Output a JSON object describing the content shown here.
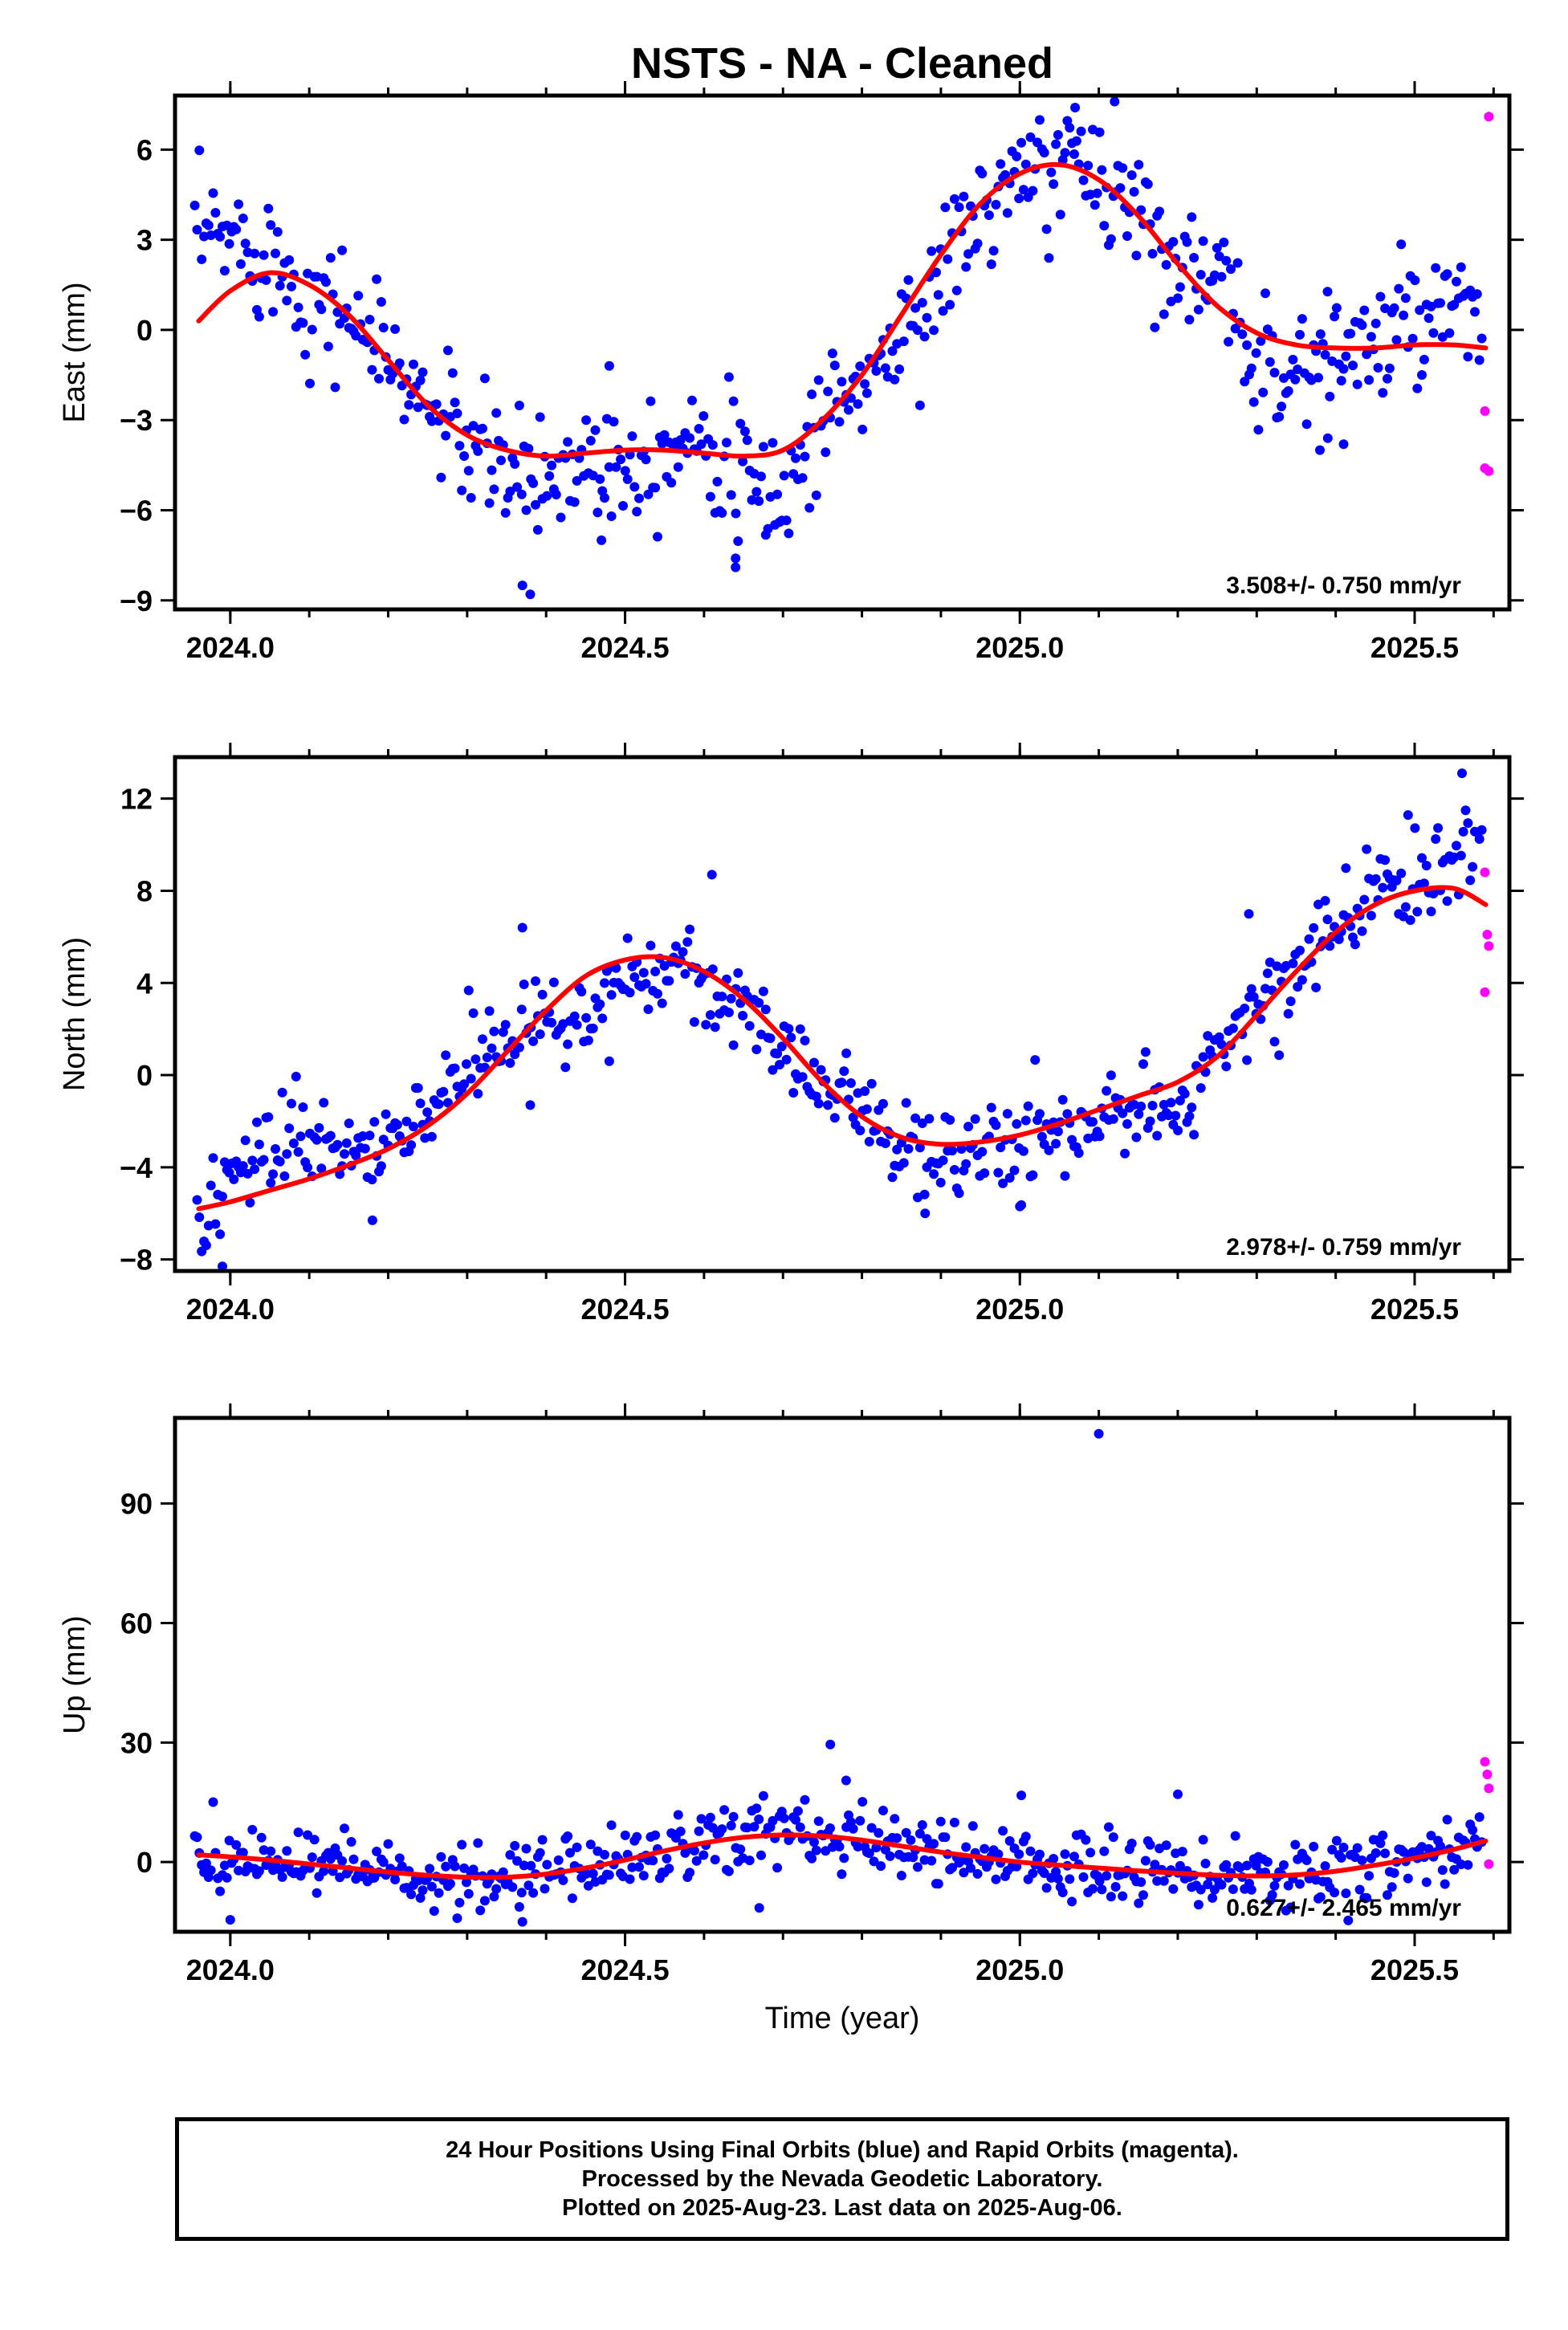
{
  "title": "NSTS  - NA - Cleaned",
  "xlabel": "Time (year)",
  "colors": {
    "final": "#0000ff",
    "rapid": "#ff00ff",
    "fit": "#ff0000",
    "axis": "#000000"
  },
  "caption": [
    "24 Hour Positions Using Final Orbits (blue) and Rapid Orbits (magenta).",
    "Processed by the Nevada Geodetic Laboratory.",
    "Plotted on 2025-Aug-23. Last data on 2025-Aug-06."
  ],
  "chart_data": [
    {
      "type": "scatter",
      "ylabel": "East (mm)",
      "rate_label": "3.508+/- 0.750 mm/yr",
      "xlim": [
        2023.93,
        2025.62
      ],
      "ylim": [
        -9.3,
        7.8
      ],
      "xticks": [
        2024.0,
        2024.5,
        2025.0,
        2025.5
      ],
      "xtick_labels": [
        "2024.0",
        "2024.5",
        "2025.0",
        "2025.5"
      ],
      "yticks": [
        -9,
        -6,
        -3,
        0,
        3,
        6
      ],
      "ytick_labels": [
        "−9",
        "−6",
        "−3",
        "0",
        "3",
        "6"
      ],
      "grid": false,
      "fit_curve": {
        "x": [
          2023.96,
          2024.0,
          2024.05,
          2024.1,
          2024.15,
          2024.2,
          2024.25,
          2024.3,
          2024.35,
          2024.4,
          2024.45,
          2024.5,
          2024.55,
          2024.6,
          2024.65,
          2024.7,
          2024.75,
          2024.8,
          2024.85,
          2024.9,
          2024.95,
          2025.0,
          2025.05,
          2025.1,
          2025.15,
          2025.2,
          2025.25,
          2025.3,
          2025.35,
          2025.4,
          2025.45,
          2025.5,
          2025.55,
          2025.59
        ],
        "y": [
          0.3,
          1.3,
          1.9,
          1.5,
          0.5,
          -1.0,
          -2.5,
          -3.5,
          -4.0,
          -4.2,
          -4.1,
          -4.0,
          -4.0,
          -4.1,
          -4.2,
          -4.0,
          -3.0,
          -1.5,
          0.5,
          2.5,
          4.2,
          5.2,
          5.5,
          5.0,
          3.8,
          2.2,
          0.8,
          -0.1,
          -0.5,
          -0.6,
          -0.6,
          -0.5,
          -0.5,
          -0.6
        ]
      },
      "anchors": {
        "x": [
          2023.96,
          2024.0,
          2024.05,
          2024.1,
          2024.15,
          2024.2,
          2024.25,
          2024.3,
          2024.35,
          2024.4,
          2024.45,
          2024.5,
          2024.55,
          2024.6,
          2024.65,
          2024.7,
          2024.75,
          2024.8,
          2024.85,
          2024.9,
          2024.95,
          2025.0,
          2025.05,
          2025.1,
          2025.15,
          2025.2,
          2025.25,
          2025.3,
          2025.35,
          2025.4,
          2025.45,
          2025.5,
          2025.55,
          2025.59
        ],
        "y": [
          3.0,
          3.1,
          2.6,
          1.0,
          0.6,
          -1.0,
          -2.5,
          -3.8,
          -4.8,
          -5.0,
          -4.2,
          -4.3,
          -3.9,
          -3.2,
          -5.2,
          -5.6,
          -2.8,
          -1.8,
          -0.2,
          1.8,
          4.0,
          4.8,
          5.6,
          5.2,
          4.0,
          2.4,
          1.3,
          -0.8,
          -1.5,
          -0.5,
          -0.6,
          0.3,
          0.2,
          0.6
        ]
      },
      "noise": 1.05,
      "count": 560,
      "outliers": [
        [
          2024.37,
          -8.5
        ],
        [
          2024.38,
          -8.8
        ],
        [
          2024.47,
          -7.0
        ],
        [
          2024.64,
          -7.9
        ],
        [
          2024.64,
          -7.6
        ],
        [
          2024.48,
          -1.2
        ],
        [
          2025.07,
          7.4
        ],
        [
          2025.12,
          7.6
        ],
        [
          2025.38,
          -4.0
        ],
        [
          2025.39,
          -3.6
        ],
        [
          2025.41,
          -3.8
        ]
      ],
      "rapid": [
        [
          2025.594,
          7.1
        ],
        [
          2025.589,
          -2.7
        ],
        [
          2025.589,
          -4.6
        ],
        [
          2025.594,
          -4.7
        ]
      ]
    },
    {
      "type": "scatter",
      "ylabel": "North (mm)",
      "rate_label": "2.978+/- 0.759 mm/yr",
      "xlim": [
        2023.93,
        2025.62
      ],
      "ylim": [
        -8.5,
        13.8
      ],
      "xticks": [
        2024.0,
        2024.5,
        2025.0,
        2025.5
      ],
      "xtick_labels": [
        "2024.0",
        "2024.5",
        "2025.0",
        "2025.5"
      ],
      "yticks": [
        -8,
        -4,
        0,
        4,
        8,
        12
      ],
      "ytick_labels": [
        "−8",
        "−4",
        "0",
        "4",
        "8",
        "12"
      ],
      "grid": false,
      "fit_curve": {
        "x": [
          2023.96,
          2024.0,
          2024.05,
          2024.1,
          2024.15,
          2024.2,
          2024.25,
          2024.3,
          2024.35,
          2024.4,
          2024.45,
          2024.5,
          2024.55,
          2024.6,
          2024.65,
          2024.7,
          2024.75,
          2024.8,
          2024.85,
          2024.9,
          2024.95,
          2025.0,
          2025.05,
          2025.1,
          2025.15,
          2025.2,
          2025.25,
          2025.3,
          2025.35,
          2025.4,
          2025.45,
          2025.5,
          2025.55,
          2025.59
        ],
        "y": [
          -5.8,
          -5.5,
          -5.0,
          -4.5,
          -3.9,
          -3.2,
          -2.2,
          -0.8,
          1.0,
          2.8,
          4.3,
          5.0,
          5.1,
          4.5,
          3.3,
          1.6,
          -0.3,
          -1.8,
          -2.7,
          -3.0,
          -2.9,
          -2.6,
          -2.1,
          -1.5,
          -0.9,
          -0.3,
          0.8,
          2.6,
          4.5,
          6.2,
          7.4,
          8.0,
          8.1,
          7.4
        ]
      },
      "anchors": {
        "x": [
          2023.96,
          2024.0,
          2024.05,
          2024.1,
          2024.15,
          2024.2,
          2024.25,
          2024.3,
          2024.35,
          2024.4,
          2024.45,
          2024.5,
          2024.55,
          2024.6,
          2024.65,
          2024.7,
          2024.75,
          2024.8,
          2024.85,
          2024.9,
          2024.95,
          2025.0,
          2025.05,
          2025.1,
          2025.15,
          2025.2,
          2025.25,
          2025.3,
          2025.35,
          2025.4,
          2025.45,
          2025.5,
          2025.55,
          2025.59
        ],
        "y": [
          -6.3,
          -4.5,
          -3.2,
          -2.8,
          -3.4,
          -2.6,
          -1.5,
          0.3,
          1.2,
          2.8,
          2.7,
          4.6,
          4.9,
          4.2,
          2.5,
          1.3,
          -0.6,
          -1.5,
          -3.3,
          -3.3,
          -3.1,
          -3.0,
          -2.8,
          -1.8,
          -1.6,
          -1.8,
          1.0,
          3.2,
          4.4,
          6.6,
          7.8,
          8.6,
          9.4,
          10.2
        ]
      },
      "noise": 1.0,
      "count": 560,
      "outliers": [
        [
          2024.61,
          8.7
        ],
        [
          2023.99,
          -8.3
        ],
        [
          2024.18,
          -6.3
        ],
        [
          2024.88,
          -6.0
        ],
        [
          2025.0,
          -5.7
        ],
        [
          2024.37,
          6.4
        ],
        [
          2025.29,
          7.0
        ],
        [
          2025.56,
          13.1
        ],
        [
          2024.48,
          0.6
        ],
        [
          2024.38,
          -1.3
        ]
      ],
      "rapid": [
        [
          2025.589,
          8.8
        ],
        [
          2025.592,
          6.1
        ],
        [
          2025.594,
          5.6
        ],
        [
          2025.589,
          3.6
        ]
      ]
    },
    {
      "type": "scatter",
      "ylabel": "Up (mm)",
      "rate_label": "0.627+/- 2.465 mm/yr",
      "xlim": [
        2023.93,
        2025.62
      ],
      "ylim": [
        -17.5,
        111.5
      ],
      "xticks": [
        2024.0,
        2024.5,
        2025.0,
        2025.5
      ],
      "xtick_labels": [
        "2024.0",
        "2024.5",
        "2025.0",
        "2025.5"
      ],
      "yticks": [
        0,
        30,
        60,
        90
      ],
      "ytick_labels": [
        "0",
        "30",
        "60",
        "90"
      ],
      "grid": false,
      "fit_curve": {
        "x": [
          2023.96,
          2024.0,
          2024.05,
          2024.1,
          2024.15,
          2024.2,
          2024.25,
          2024.3,
          2024.35,
          2024.4,
          2024.45,
          2024.5,
          2024.55,
          2024.6,
          2024.65,
          2024.7,
          2024.75,
          2024.8,
          2024.85,
          2024.9,
          2024.95,
          2025.0,
          2025.05,
          2025.1,
          2025.15,
          2025.2,
          2025.25,
          2025.3,
          2025.35,
          2025.4,
          2025.45,
          2025.5,
          2025.55,
          2025.59
        ],
        "y": [
          1.8,
          1.3,
          0.5,
          -0.5,
          -1.5,
          -2.5,
          -3.3,
          -3.8,
          -3.8,
          -3.0,
          -1.5,
          0.5,
          2.8,
          4.8,
          6.2,
          6.8,
          6.5,
          5.5,
          4.0,
          2.5,
          1.2,
          0.0,
          -0.8,
          -1.5,
          -2.2,
          -2.8,
          -3.3,
          -3.5,
          -3.2,
          -2.3,
          -0.8,
          1.0,
          3.2,
          5.3
        ]
      },
      "anchors": {
        "x": [
          2023.96,
          2024.0,
          2024.05,
          2024.1,
          2024.15,
          2024.2,
          2024.25,
          2024.3,
          2024.35,
          2024.4,
          2024.45,
          2024.5,
          2024.55,
          2024.6,
          2024.65,
          2024.7,
          2024.75,
          2024.8,
          2024.85,
          2024.9,
          2024.95,
          2025.0,
          2025.05,
          2025.1,
          2025.15,
          2025.2,
          2025.25,
          2025.3,
          2025.35,
          2025.4,
          2025.45,
          2025.5,
          2025.55,
          2025.59
        ],
        "y": [
          1.5,
          1.0,
          0.5,
          -0.5,
          -1.5,
          -2.5,
          -3.5,
          -4.0,
          -3.8,
          -3.0,
          -1.5,
          1.0,
          3.0,
          5.0,
          6.5,
          7.5,
          7.0,
          5.5,
          4.0,
          2.5,
          1.0,
          0.0,
          -0.8,
          -1.5,
          -2.2,
          -2.8,
          -3.3,
          -3.5,
          -3.0,
          -2.0,
          -0.5,
          1.0,
          3.0,
          5.0
        ]
      },
      "noise": 4.2,
      "count": 560,
      "outliers": [
        [
          2025.1,
          107.5
        ],
        [
          2024.76,
          29.5
        ],
        [
          2024.78,
          20.5
        ],
        [
          2025.2,
          17.0
        ],
        [
          2024.0,
          -14.5
        ],
        [
          2024.37,
          -15.0
        ],
        [
          2024.67,
          -11.5
        ]
      ],
      "rapid": [
        [
          2025.589,
          25.2
        ],
        [
          2025.592,
          22.0
        ],
        [
          2025.594,
          18.5
        ],
        [
          2025.594,
          -0.5
        ]
      ]
    }
  ]
}
